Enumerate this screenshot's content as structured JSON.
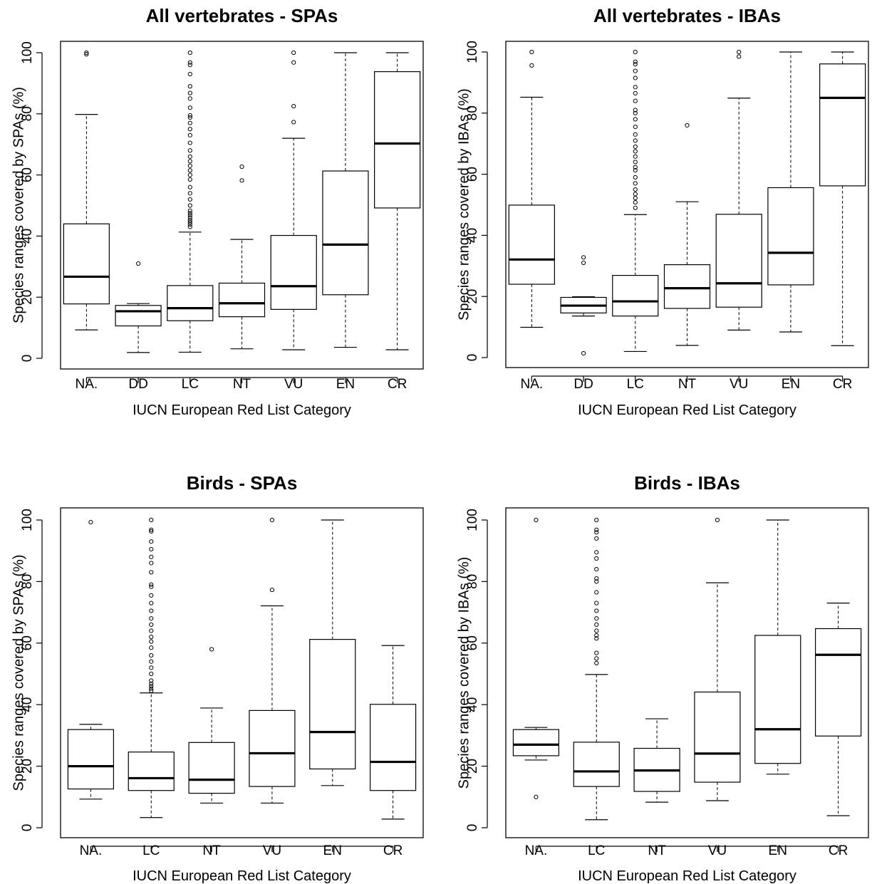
{
  "chart_data": [
    {
      "type": "boxplot",
      "title": "All vertebrates - SPAs",
      "xlabel": "IUCN European Red List Category",
      "ylabel": "Species ranges covered by SPAs (%)",
      "ylim": [
        0,
        100
      ],
      "yticks": [
        0,
        20,
        40,
        60,
        80,
        100
      ],
      "grid": false,
      "categories": [
        "NA.",
        "DD",
        "LC",
        "NT",
        "VU",
        "EN",
        "CR"
      ],
      "boxes": [
        {
          "category": "NA.",
          "whisker_low": 9.3,
          "q1": 17.8,
          "median": 26.7,
          "q3": 44.0,
          "whisker_high": 79.8,
          "outliers": [
            99.5,
            100
          ]
        },
        {
          "category": "DD",
          "whisker_low": 1.9,
          "q1": 10.6,
          "median": 15.4,
          "q3": 17.3,
          "whisker_high": 17.9,
          "outliers": [
            31.0
          ]
        },
        {
          "category": "LC",
          "whisker_low": 2.0,
          "q1": 12.3,
          "median": 16.4,
          "q3": 23.8,
          "whisker_high": 41.3,
          "outliers": [
            43,
            43.8,
            44.5,
            45.2,
            46,
            46.8,
            47.5,
            48.3,
            50,
            52,
            54,
            56,
            58.5,
            60,
            61.5,
            63,
            64.5,
            66,
            68,
            70.5,
            73,
            75,
            77,
            78.8,
            79.5,
            82,
            85,
            86.8,
            89,
            93,
            96,
            96.8,
            100
          ]
        },
        {
          "category": "NT",
          "whisker_low": 3.1,
          "q1": 13.6,
          "median": 18.0,
          "q3": 24.6,
          "whisker_high": 38.9,
          "outliers": [
            58.2,
            62.7
          ]
        },
        {
          "category": "VU",
          "whisker_low": 2.8,
          "q1": 16.0,
          "median": 23.6,
          "q3": 40.2,
          "whisker_high": 72.0,
          "outliers": [
            77.3,
            82.5,
            96.8,
            100
          ]
        },
        {
          "category": "EN",
          "whisker_low": 3.6,
          "q1": 20.8,
          "median": 37.2,
          "q3": 61.3,
          "whisker_high": 100,
          "outliers": []
        },
        {
          "category": "CR",
          "whisker_low": 2.8,
          "q1": 49.2,
          "median": 70.3,
          "q3": 93.8,
          "whisker_high": 100,
          "outliers": []
        }
      ]
    },
    {
      "type": "boxplot",
      "title": "All vertebrates - IBAs",
      "xlabel": "IUCN European Red List Category",
      "ylabel": "Species ranges covered by IBAs (%)",
      "ylim": [
        0,
        100
      ],
      "yticks": [
        0,
        20,
        40,
        60,
        80,
        100
      ],
      "grid": false,
      "categories": [
        "NA.",
        "DD",
        "LC",
        "NT",
        "VU",
        "EN",
        "CR"
      ],
      "boxes": [
        {
          "category": "NA.",
          "whisker_low": 9.9,
          "q1": 24.0,
          "median": 32.1,
          "q3": 49.9,
          "whisker_high": 85.2,
          "outliers": [
            95.6,
            100
          ]
        },
        {
          "category": "DD",
          "whisker_low": 13.6,
          "q1": 14.6,
          "median": 17.0,
          "q3": 19.7,
          "whisker_high": 19.9,
          "outliers": [
            1.4,
            31.0,
            32.8
          ]
        },
        {
          "category": "LC",
          "whisker_low": 2.0,
          "q1": 13.6,
          "median": 18.4,
          "q3": 26.9,
          "whisker_high": 46.8,
          "outliers": [
            49,
            50.8,
            52.2,
            53.5,
            55,
            57,
            59,
            61.3,
            62.3,
            64,
            65.8,
            67.5,
            69,
            71,
            73,
            75.5,
            78,
            80,
            81,
            84,
            86.5,
            88.5,
            91.5,
            93.8,
            96,
            96.8,
            100
          ]
        },
        {
          "category": "NT",
          "whisker_low": 4.0,
          "q1": 16.1,
          "median": 22.7,
          "q3": 30.4,
          "whisker_high": 51.0,
          "outliers": [
            76.0
          ]
        },
        {
          "category": "VU",
          "whisker_low": 9.0,
          "q1": 16.5,
          "median": 24.3,
          "q3": 46.9,
          "whisker_high": 84.9,
          "outliers": [
            98.5,
            100
          ]
        },
        {
          "category": "EN",
          "whisker_low": 8.4,
          "q1": 23.8,
          "median": 34.3,
          "q3": 55.6,
          "whisker_high": 100,
          "outliers": []
        },
        {
          "category": "CR",
          "whisker_low": 3.9,
          "q1": 56.2,
          "median": 85.0,
          "q3": 96.1,
          "whisker_high": 100,
          "outliers": []
        }
      ]
    },
    {
      "type": "boxplot",
      "title": "Birds - SPAs",
      "xlabel": "IUCN European Red List Category",
      "ylabel": "Species ranges covered by SPAs (%)",
      "ylim": [
        0,
        100
      ],
      "yticks": [
        0,
        20,
        40,
        60,
        80,
        100
      ],
      "grid": false,
      "categories": [
        "NA.",
        "LC",
        "NT",
        "VU",
        "EN",
        "CR"
      ],
      "boxes": [
        {
          "category": "NA.",
          "whisker_low": 9.3,
          "q1": 12.6,
          "median": 20.0,
          "q3": 31.9,
          "whisker_high": 33.6,
          "outliers": [
            99.3
          ]
        },
        {
          "category": "LC",
          "whisker_low": 3.3,
          "q1": 12.1,
          "median": 16.1,
          "q3": 24.6,
          "whisker_high": 43.8,
          "outliers": [
            44.5,
            45.2,
            46,
            46.8,
            47.8,
            50,
            52,
            54,
            56,
            58.5,
            60.5,
            62,
            64,
            66,
            68,
            70.5,
            73,
            75.5,
            78.3,
            79,
            83,
            86,
            88,
            90.5,
            93,
            96.3,
            96.8,
            100
          ]
        },
        {
          "category": "NT",
          "whisker_low": 8.0,
          "q1": 11.2,
          "median": 15.6,
          "q3": 27.7,
          "whisker_high": 38.9,
          "outliers": [
            58.0
          ]
        },
        {
          "category": "VU",
          "whisker_low": 8.0,
          "q1": 13.4,
          "median": 24.2,
          "q3": 38.1,
          "whisker_high": 72.1,
          "outliers": [
            77.3,
            100
          ]
        },
        {
          "category": "EN",
          "whisker_low": 13.7,
          "q1": 19.1,
          "median": 31.1,
          "q3": 61.2,
          "whisker_high": 100,
          "outliers": []
        },
        {
          "category": "CR",
          "whisker_low": 2.8,
          "q1": 12.1,
          "median": 21.4,
          "q3": 40.1,
          "whisker_high": 59.2,
          "outliers": []
        }
      ]
    },
    {
      "type": "boxplot",
      "title": "Birds - IBAs",
      "xlabel": "IUCN European Red List Category",
      "ylabel": "Species ranges covered by IBAs (%)",
      "ylim": [
        0,
        100
      ],
      "yticks": [
        0,
        20,
        40,
        60,
        80,
        100
      ],
      "grid": false,
      "categories": [
        "NA.",
        "LC",
        "NT",
        "VU",
        "EN",
        "CR"
      ],
      "boxes": [
        {
          "category": "NA.",
          "whisker_low": 22.0,
          "q1": 23.4,
          "median": 27.0,
          "q3": 31.9,
          "whisker_high": 32.6,
          "outliers": [
            10.0,
            100
          ]
        },
        {
          "category": "LC",
          "whisker_low": 2.6,
          "q1": 13.4,
          "median": 18.3,
          "q3": 27.8,
          "whisker_high": 49.8,
          "outliers": [
            53.5,
            55,
            56.8,
            61.5,
            62.5,
            64,
            66,
            68,
            70.5,
            73,
            76.5,
            80,
            81,
            84,
            87.5,
            89.5,
            94,
            96,
            96.8,
            100
          ]
        },
        {
          "category": "NT",
          "whisker_low": 8.3,
          "q1": 11.8,
          "median": 18.6,
          "q3": 25.8,
          "whisker_high": 35.4,
          "outliers": []
        },
        {
          "category": "VU",
          "whisker_low": 8.8,
          "q1": 14.8,
          "median": 24.1,
          "q3": 44.1,
          "whisker_high": 79.6,
          "outliers": [
            100
          ]
        },
        {
          "category": "EN",
          "whisker_low": 17.4,
          "q1": 20.9,
          "median": 32.0,
          "q3": 62.5,
          "whisker_high": 100,
          "outliers": []
        },
        {
          "category": "CR",
          "whisker_low": 3.9,
          "q1": 29.8,
          "median": 56.2,
          "q3": 64.7,
          "whisker_high": 73.0,
          "outliers": []
        }
      ]
    }
  ]
}
